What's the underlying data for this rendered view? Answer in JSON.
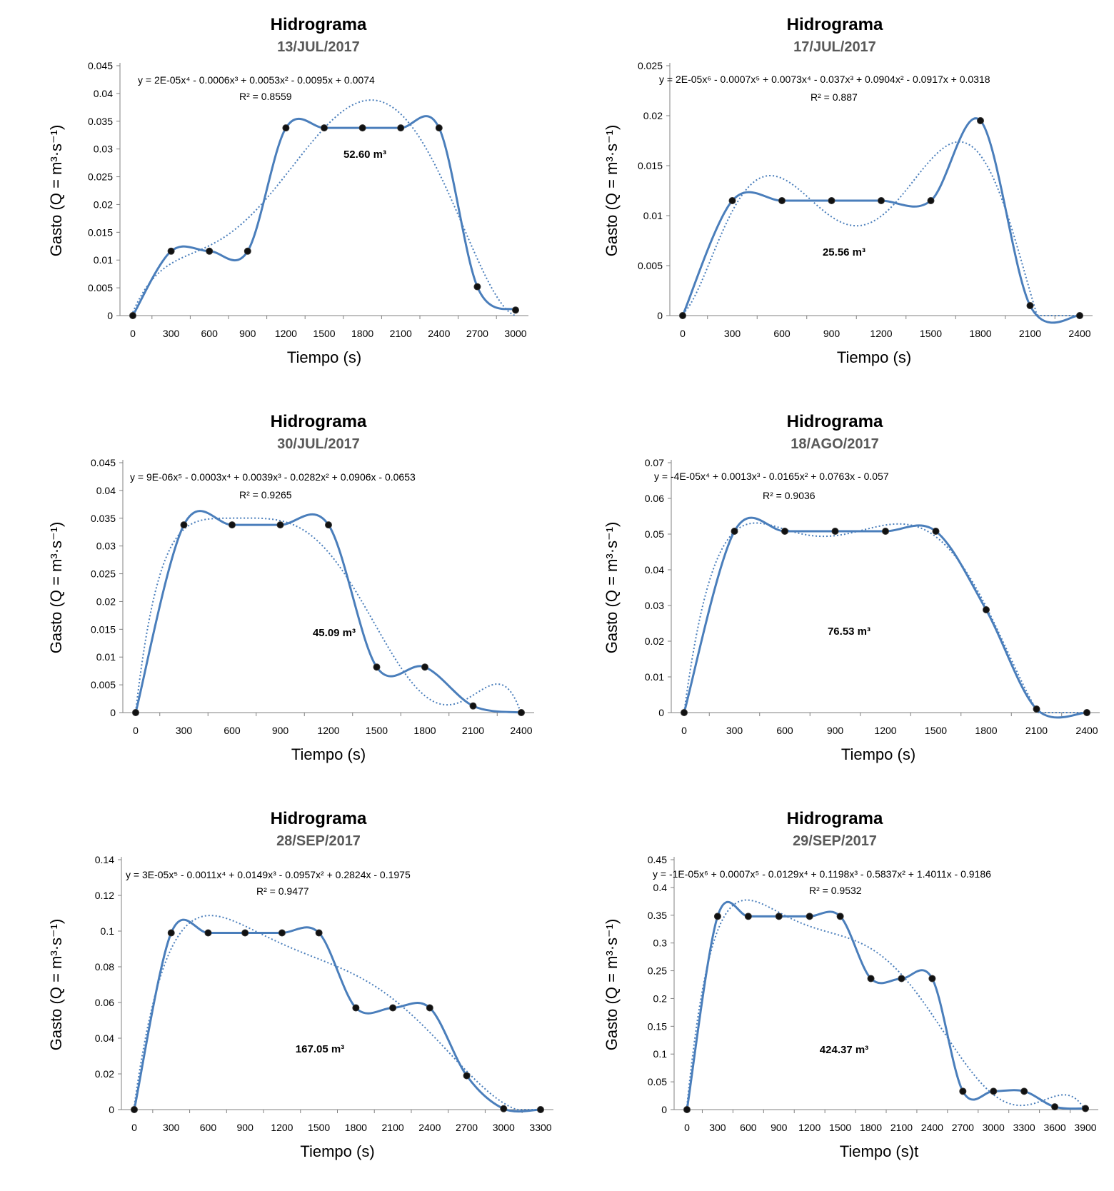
{
  "colors": {
    "line": "#4a7ebb",
    "trend": "#4a7ebb",
    "marker": "#111111",
    "axis": "#808080",
    "subtitle": "#595959"
  },
  "chart_data": [
    {
      "type": "line",
      "title": "Hidrograma",
      "subtitle": "13/JUL/2017",
      "xlabel": "Tiempo (s)",
      "ylabel": "Gasto (Q = m³·s⁻¹)",
      "xticks": [
        "0",
        "300",
        "600",
        "900",
        "1200",
        "1500",
        "1800",
        "2100",
        "2400",
        "2700",
        "3000"
      ],
      "yticks": [
        "0",
        "0.005",
        "0.01",
        "0.015",
        "0.02",
        "0.025",
        "0.03",
        "0.035",
        "0.04",
        "0.045"
      ],
      "ylim": [
        0,
        0.045
      ],
      "x": [
        0,
        300,
        600,
        900,
        1200,
        1500,
        1800,
        2100,
        2400,
        2700,
        3000
      ],
      "y": [
        0,
        0.0116,
        0.0116,
        0.0116,
        0.0338,
        0.0338,
        0.0338,
        0.0338,
        0.0338,
        0.0052,
        0.001
      ],
      "equation": "y = 2E-05x⁴ - 0.0006x³ + 0.0053x² - 0.0095x + 0.0074",
      "r2": "R² = 0.8559",
      "volume": "52.60 m³"
    },
    {
      "type": "line",
      "title": "Hidrograma",
      "subtitle": "17/JUL/2017",
      "xlabel": "Tiempo (s)",
      "ylabel": "Gasto (Q = m³·s⁻¹)",
      "xticks": [
        "0",
        "300",
        "600",
        "900",
        "1200",
        "1500",
        "1800",
        "2100",
        "2400"
      ],
      "yticks": [
        "0",
        "0.005",
        "0.01",
        "0.015",
        "0.02",
        "0.025"
      ],
      "ylim": [
        0,
        0.025
      ],
      "x": [
        0,
        300,
        600,
        900,
        1200,
        1500,
        1800,
        2100,
        2400
      ],
      "y": [
        0,
        0.0115,
        0.0115,
        0.0115,
        0.0115,
        0.0115,
        0.0195,
        0.001,
        0
      ],
      "equation": "y = 2E-05x⁶ - 0.0007x⁵ + 0.0073x⁴ - 0.037x³ + 0.0904x² - 0.0917x + 0.0318",
      "r2": "R² = 0.887",
      "volume": "25.56 m³"
    },
    {
      "type": "line",
      "title": "Hidrograma",
      "subtitle": "30/JUL/2017",
      "xlabel": "Tiempo (s)",
      "ylabel": "Gasto (Q = m³·s⁻¹)",
      "xticks": [
        "0",
        "300",
        "600",
        "900",
        "1200",
        "1500",
        "1800",
        "2100",
        "2400"
      ],
      "yticks": [
        "0",
        "0.005",
        "0.01",
        "0.015",
        "0.02",
        "0.025",
        "0.03",
        "0.035",
        "0.04",
        "0.045"
      ],
      "ylim": [
        0,
        0.045
      ],
      "x": [
        0,
        300,
        600,
        900,
        1200,
        1500,
        1800,
        2100,
        2400
      ],
      "y": [
        0,
        0.0338,
        0.0338,
        0.0338,
        0.0338,
        0.0082,
        0.0082,
        0.0012,
        0
      ],
      "equation": "y = 9E-06x⁵ - 0.0003x⁴ + 0.0039x³ - 0.0282x² + 0.0906x - 0.0653",
      "r2": "R² = 0.9265",
      "volume": "45.09 m³"
    },
    {
      "type": "line",
      "title": "Hidrograma",
      "subtitle": "18/AGO/2017",
      "xlabel": "Tiempo (s)",
      "ylabel": "Gasto (Q = m³·s⁻¹)",
      "xticks": [
        "0",
        "300",
        "600",
        "900",
        "1200",
        "1500",
        "1800",
        "2100",
        "2400"
      ],
      "yticks": [
        "0",
        "0.01",
        "0.02",
        "0.03",
        "0.04",
        "0.05",
        "0.06",
        "0.07"
      ],
      "ylim": [
        0,
        0.07
      ],
      "x": [
        0,
        300,
        600,
        900,
        1200,
        1500,
        1800,
        2100,
        2400
      ],
      "y": [
        0,
        0.0508,
        0.0508,
        0.0508,
        0.0508,
        0.0508,
        0.0288,
        0.001,
        0
      ],
      "equation": "y = -4E-05x⁴ + 0.0013x³ - 0.0165x² + 0.0763x - 0.057",
      "r2": "R² = 0.9036",
      "volume": "76.53 m³"
    },
    {
      "type": "line",
      "title": "Hidrograma",
      "subtitle": "28/SEP/2017",
      "xlabel": "Tiempo (s)",
      "ylabel": "Gasto (Q = m³·s⁻¹)",
      "xticks": [
        "0",
        "300",
        "600",
        "900",
        "1200",
        "1500",
        "1800",
        "2100",
        "2400",
        "2700",
        "3000",
        "3300"
      ],
      "yticks": [
        "0",
        "0.02",
        "0.04",
        "0.06",
        "0.08",
        "0.1",
        "0.12",
        "0.14"
      ],
      "ylim": [
        0,
        0.14
      ],
      "x": [
        0,
        300,
        600,
        900,
        1200,
        1500,
        1800,
        2100,
        2400,
        2700,
        3000,
        3300
      ],
      "y": [
        0,
        0.099,
        0.099,
        0.099,
        0.099,
        0.099,
        0.057,
        0.057,
        0.057,
        0.019,
        0.0005,
        0
      ],
      "equation": "y = 3E-05x⁵ - 0.0011x⁴ + 0.0149x³ - 0.0957x² + 0.2824x - 0.1975",
      "r2": "R² = 0.9477",
      "volume": "167.05 m³"
    },
    {
      "type": "line",
      "title": "Hidrograma",
      "subtitle": "29/SEP/2017",
      "xlabel": "Tiempo (s)t",
      "ylabel": "Gasto (Q = m³·s⁻¹)",
      "xticks": [
        "0",
        "300",
        "600",
        "900",
        "1200",
        "1500",
        "1800",
        "2100",
        "2400",
        "2700",
        "3000",
        "3300",
        "3600",
        "3900"
      ],
      "yticks": [
        "0",
        "0.05",
        "0.1",
        "0.15",
        "0.2",
        "0.25",
        "0.3",
        "0.35",
        "0.4",
        "0.45"
      ],
      "ylim": [
        0,
        0.45
      ],
      "x": [
        0,
        300,
        600,
        900,
        1200,
        1500,
        1800,
        2100,
        2400,
        2700,
        3000,
        3300,
        3600,
        3900
      ],
      "y": [
        0,
        0.348,
        0.348,
        0.348,
        0.348,
        0.348,
        0.236,
        0.236,
        0.236,
        0.033,
        0.033,
        0.033,
        0.005,
        0.002
      ],
      "equation": "y = -1E-05x⁶ + 0.0007x⁵ - 0.0129x⁴ + 0.1198x³ - 0.5837x² + 1.4011x - 0.9186",
      "r2": "R² = 0.9532",
      "volume": "424.37 m³"
    }
  ]
}
